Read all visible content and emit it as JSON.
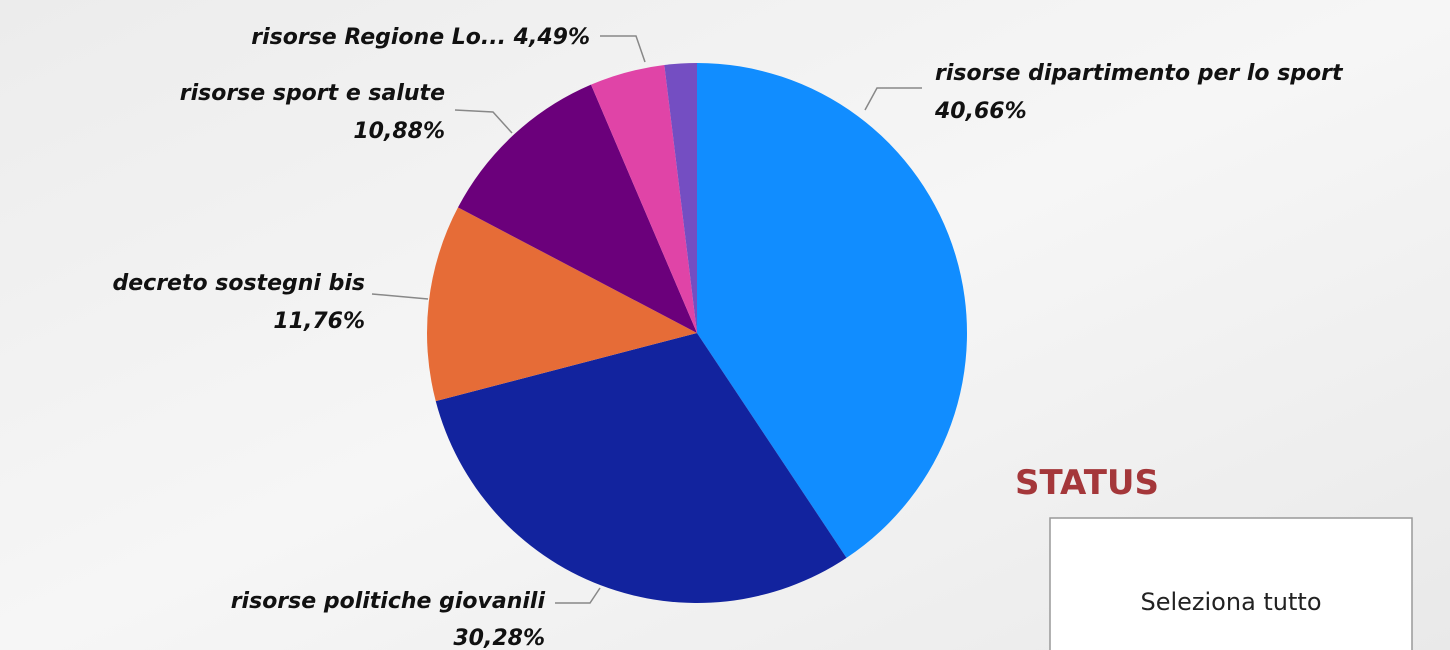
{
  "chart_data": {
    "type": "pie",
    "categories": [
      "risorse dipartimento per lo sport",
      "risorse politiche giovanili",
      "decreto sostegni bis",
      "risorse sport e salute",
      "risorse Regione Lo...",
      null
    ],
    "values": [
      40.66,
      30.28,
      11.76,
      10.88,
      4.49,
      1.93
    ],
    "value_labels": [
      "40,66%",
      "30,28%",
      "11,76%",
      "10,88%",
      "4,49%",
      null
    ],
    "colors": [
      "#118DFF",
      "#12239E",
      "#E66C37",
      "#6B007B",
      "#E044A7",
      "#744EC2"
    ]
  },
  "slicer": {
    "title": "STATUS",
    "items": [
      "Seleziona tutto"
    ]
  }
}
